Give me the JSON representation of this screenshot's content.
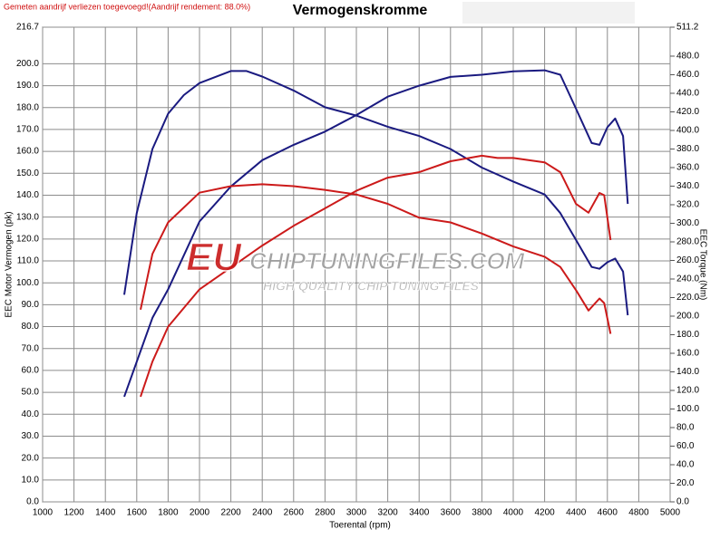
{
  "header_note": "Gemeten aandrijf verliezen toegevoegd!(Aandrijf rendement: 88.0%)",
  "watermark": {
    "brand": "EU",
    "site": "CHIPTUNINGFILES.COM",
    "tagline": "HIGH QUALITY CHIP TUNING FILES"
  },
  "chart_data": {
    "type": "line",
    "title": "Vermogenskromme",
    "x_label": "Toerental (rpm)",
    "y_label": "EEC Motor Vermogen (pk)",
    "y2_label": "EEC Torque (Nm)",
    "xlim": [
      1000,
      5000
    ],
    "ylim": [
      0,
      216.7
    ],
    "y2lim": [
      0,
      511.2
    ],
    "grid": true,
    "xticks": [
      1000,
      1200,
      1400,
      1600,
      1800,
      2000,
      2200,
      2400,
      2600,
      2800,
      3000,
      3200,
      3400,
      3600,
      3800,
      4000,
      4200,
      4400,
      4600,
      4800,
      5000
    ],
    "yticks": [
      {
        "value": 0,
        "label": "0.0"
      },
      {
        "value": 10,
        "label": "10.0"
      },
      {
        "value": 20,
        "label": "20.0"
      },
      {
        "value": 30,
        "label": "30.0"
      },
      {
        "value": 40,
        "label": "40.0"
      },
      {
        "value": 50,
        "label": "50.0"
      },
      {
        "value": 60,
        "label": "60.0"
      },
      {
        "value": 70,
        "label": "70.0"
      },
      {
        "value": 80,
        "label": "80.0"
      },
      {
        "value": 90,
        "label": "90.0"
      },
      {
        "value": 100,
        "label": "100.0"
      },
      {
        "value": 110,
        "label": "110.0"
      },
      {
        "value": 120,
        "label": "120.0"
      },
      {
        "value": 130,
        "label": "130.0"
      },
      {
        "value": 140,
        "label": "140.0"
      },
      {
        "value": 150,
        "label": "150.0"
      },
      {
        "value": 160,
        "label": "160.0"
      },
      {
        "value": 170,
        "label": "170.0"
      },
      {
        "value": 180,
        "label": "180.0"
      },
      {
        "value": 190,
        "label": "190.0"
      },
      {
        "value": 200,
        "label": "200.0"
      },
      216.7
    ],
    "y2ticks": [
      {
        "value": 0,
        "label": "0.0"
      },
      {
        "value": 20,
        "label": "20.0"
      },
      {
        "value": 40,
        "label": "40.0"
      },
      {
        "value": 60,
        "label": "60.0"
      },
      {
        "value": 80,
        "label": "80.0"
      },
      {
        "value": 100,
        "label": "100.0"
      },
      {
        "value": 120,
        "label": "120.0"
      },
      {
        "value": 140,
        "label": "140.0"
      },
      {
        "value": 160,
        "label": "160.0"
      },
      {
        "value": 180,
        "label": "180.0"
      },
      {
        "value": 200,
        "label": "200.0"
      },
      {
        "value": 220,
        "label": "220.0"
      },
      {
        "value": 240,
        "label": "240.0"
      },
      {
        "value": 260,
        "label": "260.0"
      },
      {
        "value": 280,
        "label": "280.0"
      },
      {
        "value": 300,
        "label": "300.0"
      },
      {
        "value": 320,
        "label": "320.0"
      },
      {
        "value": 340,
        "label": "340.0"
      },
      {
        "value": 360,
        "label": "360.0"
      },
      {
        "value": 380,
        "label": "380.0"
      },
      {
        "value": 400,
        "label": "400.0"
      },
      {
        "value": 420,
        "label": "420.0"
      },
      {
        "value": 440,
        "label": "440.0"
      },
      {
        "value": 460,
        "label": "460.0"
      },
      {
        "value": 480,
        "label": "480.0"
      },
      511.2
    ],
    "series": [
      {
        "color": "#1a1a80",
        "axis": "y",
        "x": [
          1520,
          1700,
          1800,
          2000,
          2200,
          2400,
          2600,
          2800,
          3000,
          3200,
          3400,
          3600,
          3800,
          4000,
          4200,
          4300,
          4400,
          4500,
          4550,
          4600,
          4650,
          4700,
          4730
        ],
        "values": [
          48,
          84,
          97,
          128,
          144,
          156,
          163,
          169,
          176.6,
          185,
          190,
          194,
          195,
          196.5,
          197,
          195,
          179.5,
          163.8,
          163,
          171,
          175,
          167,
          136
        ]
      },
      {
        "color": "#1a1a80",
        "axis": "y2",
        "x": [
          1520,
          1600,
          1700,
          1800,
          1900,
          2000,
          2200,
          2300,
          2400,
          2600,
          2800,
          3000,
          3200,
          3400,
          3600,
          3800,
          4000,
          4200,
          4300,
          4400,
          4500,
          4550,
          4600,
          4650,
          4700,
          4730
        ],
        "values": [
          223,
          311,
          380,
          418,
          438,
          451,
          464,
          464,
          458,
          443,
          425,
          416,
          404,
          394,
          380,
          360,
          345,
          331,
          311,
          282,
          253,
          251,
          258,
          262,
          248,
          201
        ]
      },
      {
        "color": "#cc1a1a",
        "axis": "y",
        "x": [
          1624,
          1700,
          1800,
          2000,
          2200,
          2400,
          2600,
          2800,
          3000,
          3200,
          3400,
          3600,
          3800,
          3900,
          4000,
          4200,
          4300,
          4400,
          4480,
          4550,
          4580,
          4620
        ],
        "values": [
          48,
          64,
          80,
          97,
          107,
          117,
          126,
          134,
          142,
          148,
          150.5,
          155.5,
          158,
          157,
          157,
          155,
          150.5,
          136,
          132,
          141,
          140,
          119.5
        ]
      },
      {
        "color": "#cc1a1a",
        "axis": "y2",
        "x": [
          1624,
          1700,
          1800,
          2000,
          2200,
          2400,
          2600,
          2800,
          3000,
          3200,
          3400,
          3600,
          3800,
          4000,
          4200,
          4300,
          4400,
          4480,
          4550,
          4580,
          4620
        ],
        "values": [
          207,
          267,
          301,
          333,
          340,
          342,
          340,
          336,
          331,
          321,
          306,
          301,
          289,
          275,
          264,
          253,
          228,
          206,
          219,
          214,
          181
        ]
      }
    ]
  }
}
